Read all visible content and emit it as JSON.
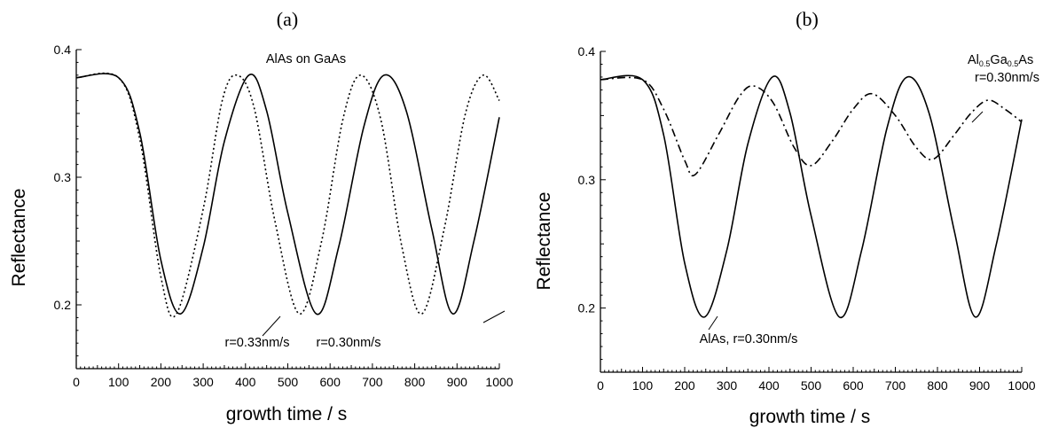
{
  "chart_data": [
    {
      "type": "line",
      "panel_label": "(a)",
      "title": "AlAs on GaAs",
      "xlabel": "growth time / s",
      "ylabel": "Reflectance",
      "xlim": [
        0,
        1000
      ],
      "ylim": [
        0.15,
        0.4
      ],
      "xticks": [
        "0",
        "100",
        "200",
        "300",
        "400",
        "500",
        "600",
        "700",
        "800",
        "900",
        "1000"
      ],
      "yticks": [
        "0.2",
        "0.3",
        "0.4"
      ],
      "grid": false,
      "series": [
        {
          "name": "r=0.30nm/s",
          "style": "solid",
          "x": [
            0,
            100,
            150,
            200,
            247,
            300,
            350,
            408,
            450,
            500,
            567,
            620,
            680,
            728,
            780,
            840,
            890,
            940,
            1000
          ],
          "y": [
            0.378,
            0.378,
            0.335,
            0.235,
            0.193,
            0.245,
            0.328,
            0.38,
            0.352,
            0.272,
            0.193,
            0.245,
            0.34,
            0.38,
            0.352,
            0.26,
            0.193,
            0.25,
            0.347
          ]
        },
        {
          "name": "r=0.33nm/s",
          "style": "dotted",
          "x": [
            0,
            100,
            150,
            200,
            237,
            300,
            345,
            380,
            420,
            470,
            527,
            580,
            630,
            672,
            720,
            770,
            817,
            870,
            920,
            962,
            1000
          ],
          "y": [
            0.378,
            0.378,
            0.33,
            0.222,
            0.193,
            0.275,
            0.36,
            0.38,
            0.355,
            0.265,
            0.193,
            0.25,
            0.345,
            0.38,
            0.345,
            0.245,
            0.193,
            0.26,
            0.35,
            0.38,
            0.36
          ]
        }
      ],
      "annotations": [
        "r=0.33nm/s",
        "r=0.30nm/s"
      ]
    },
    {
      "type": "line",
      "panel_label": "(b)",
      "title": "",
      "xlabel": "growth time / s",
      "ylabel": "Reflectance",
      "xlim": [
        0,
        1000
      ],
      "ylim": [
        0.15,
        0.4
      ],
      "xticks": [
        "0",
        "100",
        "200",
        "300",
        "400",
        "500",
        "600",
        "700",
        "800",
        "900",
        "1000"
      ],
      "yticks": [
        "0.2",
        "0.3",
        "0.4"
      ],
      "grid": false,
      "series": [
        {
          "name": "AlAs, r=0.30nm/s",
          "style": "solid",
          "x": [
            0,
            100,
            150,
            200,
            247,
            300,
            350,
            408,
            450,
            500,
            567,
            620,
            680,
            728,
            780,
            840,
            890,
            940,
            1000
          ],
          "y": [
            0.378,
            0.378,
            0.335,
            0.235,
            0.193,
            0.245,
            0.328,
            0.38,
            0.352,
            0.272,
            0.193,
            0.245,
            0.34,
            0.38,
            0.352,
            0.26,
            0.193,
            0.25,
            0.347
          ]
        },
        {
          "name": "Al0.5Ga0.5As r=0.30nm/s",
          "style": "dash-dot",
          "x": [
            0,
            100,
            150,
            200,
            225,
            280,
            330,
            365,
            410,
            460,
            500,
            550,
            600,
            645,
            700,
            750,
            790,
            840,
            880,
            920,
            960,
            1000
          ],
          "y": [
            0.378,
            0.378,
            0.355,
            0.315,
            0.304,
            0.335,
            0.365,
            0.373,
            0.36,
            0.325,
            0.311,
            0.33,
            0.355,
            0.367,
            0.35,
            0.325,
            0.316,
            0.335,
            0.352,
            0.362,
            0.355,
            0.345
          ]
        }
      ],
      "annotations": [
        "AlAs, r=0.30nm/s",
        "Al",
        "0.5",
        "Ga",
        "0.5",
        "As",
        "r=0.30nm/s"
      ]
    }
  ]
}
